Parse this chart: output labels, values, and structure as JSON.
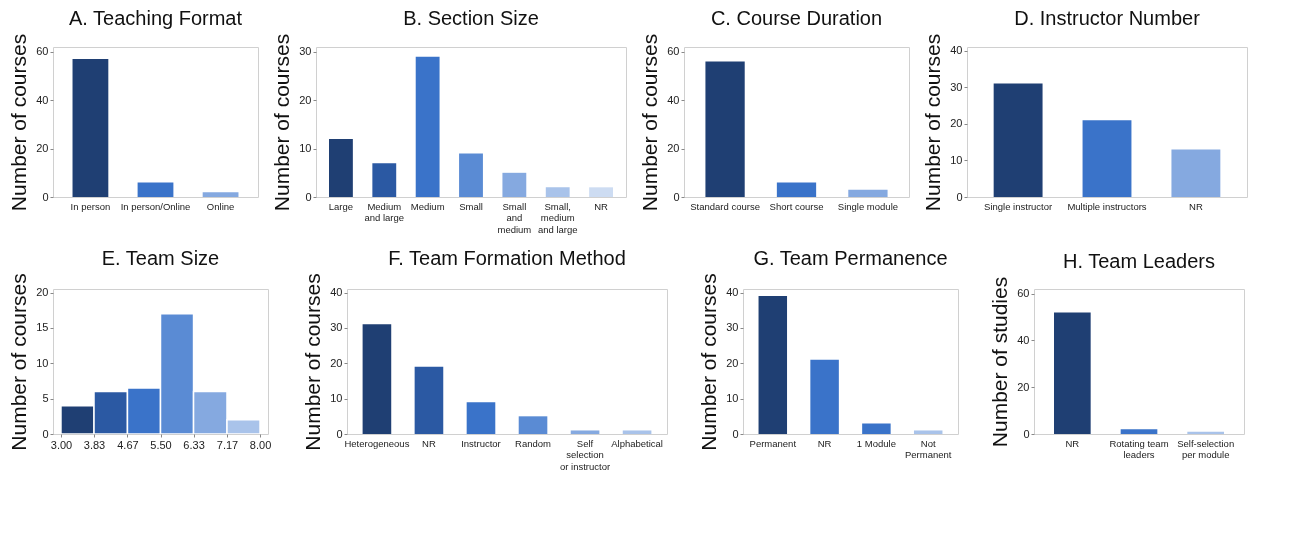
{
  "chart_data": [
    {
      "type": "bar",
      "title": "A. Teaching Format",
      "ylabel": "Number of courses",
      "categories": [
        "In person",
        "In person/Online",
        "Online"
      ],
      "values": [
        57,
        6,
        2
      ],
      "colors": [
        "#1f3f73",
        "#3a73c9",
        "#85a9e0"
      ],
      "ylim": [
        0,
        62
      ],
      "yticks": [
        0,
        20,
        40,
        60
      ],
      "grid": false
    },
    {
      "type": "bar",
      "title": "B. Section Size",
      "ylabel": "Number of courses",
      "categories": [
        "Large",
        "Medium\nand large",
        "Medium",
        "Small",
        "Small\nand\nmedium",
        "Small,\nmedium\nand large",
        "NR"
      ],
      "values": [
        12,
        7,
        29,
        9,
        5,
        2,
        2
      ],
      "colors": [
        "#1f3f73",
        "#2b59a3",
        "#3a73c9",
        "#5a8bd4",
        "#85a9e0",
        "#a9c3ea",
        "#cddcf2"
      ],
      "ylim": [
        0,
        31
      ],
      "yticks": [
        0,
        10,
        20,
        30
      ],
      "grid": false
    },
    {
      "type": "bar",
      "title": "C. Course Duration",
      "ylabel": "Number of courses",
      "categories": [
        "Standard course",
        "Short course",
        "Single module"
      ],
      "values": [
        56,
        6,
        3
      ],
      "colors": [
        "#1f3f73",
        "#3a73c9",
        "#85a9e0"
      ],
      "ylim": [
        0,
        62
      ],
      "yticks": [
        0,
        20,
        40,
        60
      ],
      "grid": false
    },
    {
      "type": "bar",
      "title": "D. Instructor Number",
      "ylabel": "Number of courses",
      "categories": [
        "Single instructor",
        "Multiple instructors",
        "NR"
      ],
      "values": [
        31,
        21,
        13
      ],
      "colors": [
        "#1f3f73",
        "#3a73c9",
        "#85a9e0"
      ],
      "ylim": [
        0,
        41
      ],
      "yticks": [
        0,
        10,
        20,
        30,
        40
      ],
      "grid": false
    },
    {
      "type": "histogram",
      "title": "E. Team Size",
      "ylabel": "Number of courses",
      "bins": [
        3.0,
        3.83,
        4.67,
        5.5,
        6.33,
        7.17,
        8.0
      ],
      "values": [
        4,
        6,
        6.5,
        17,
        6,
        2
      ],
      "colors": [
        "#1f3f73",
        "#2b59a3",
        "#3a73c9",
        "#5a8bd4",
        "#85a9e0",
        "#a9c3ea"
      ],
      "xlim": [
        2.8,
        8.2
      ],
      "xticks": [
        {
          "value": 3.0,
          "label": "3.00"
        },
        {
          "value": 3.83,
          "label": "3.83"
        },
        {
          "value": 4.67,
          "label": "4.67"
        },
        {
          "value": 5.5,
          "label": "5.50"
        },
        {
          "value": 6.33,
          "label": "6.33"
        },
        {
          "value": 7.17,
          "label": "7.17"
        },
        {
          "value": 8.0,
          "label": "8.00"
        }
      ],
      "ylim": [
        0,
        20.5
      ],
      "yticks": [
        0,
        5,
        10,
        15,
        20
      ],
      "grid": false
    },
    {
      "type": "bar",
      "title": "F. Team Formation Method",
      "ylabel": "Number of courses",
      "categories": [
        "Heterogeneous",
        "NR",
        "Instructor",
        "Random",
        "Self\nselection\nor instructor",
        "Alphabetical"
      ],
      "values": [
        31,
        19,
        9,
        5,
        1,
        1
      ],
      "colors": [
        "#1f3f73",
        "#2b59a3",
        "#3a73c9",
        "#5a8bd4",
        "#85a9e0",
        "#a9c3ea"
      ],
      "ylim": [
        0,
        41
      ],
      "yticks": [
        0,
        10,
        20,
        30,
        40
      ],
      "grid": false
    },
    {
      "type": "bar",
      "title": "G. Team Permanence",
      "ylabel": "Number of courses",
      "categories": [
        "Permanent",
        "NR",
        "1 Module",
        "Not\nPermanent"
      ],
      "values": [
        39,
        21,
        3,
        1
      ],
      "colors": [
        "#1f3f73",
        "#3a73c9",
        "#3a73c9",
        "#a9c3ea"
      ],
      "ylim": [
        0,
        41
      ],
      "yticks": [
        0,
        10,
        20,
        30,
        40
      ],
      "grid": false
    },
    {
      "type": "bar",
      "title": "H. Team Leaders",
      "ylabel": "Number of studies",
      "categories": [
        "NR",
        "Rotating team\nleaders",
        "Self-selection\nper module"
      ],
      "values": [
        52,
        2,
        1
      ],
      "colors": [
        "#1f3f73",
        "#3a73c9",
        "#a9c3ea"
      ],
      "ylim": [
        0,
        62
      ],
      "yticks": [
        0,
        20,
        40,
        60
      ],
      "grid": false
    }
  ]
}
